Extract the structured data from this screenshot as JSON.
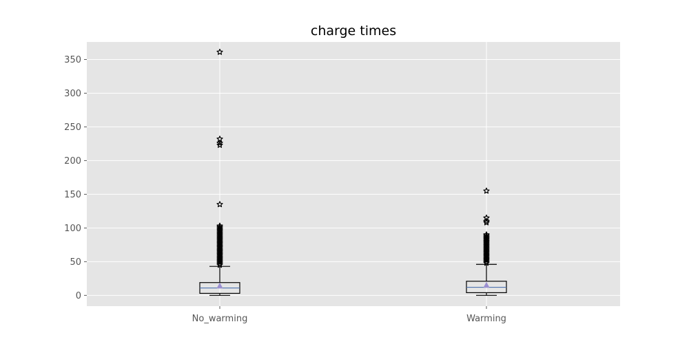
{
  "chart_data": {
    "type": "box",
    "title": "charge times",
    "xlabel": "",
    "ylabel": "",
    "ylim": [
      -16,
      376
    ],
    "yticks": [
      0,
      50,
      100,
      150,
      200,
      250,
      300,
      350
    ],
    "grid": true,
    "categories": [
      "No_warming",
      "Warming"
    ],
    "series": [
      {
        "whisker_low": 0,
        "q1": 3,
        "median": 11,
        "q3": 19,
        "whisker_high": 43,
        "mean": 14,
        "outliers": [
          45,
          47,
          49,
          51,
          53,
          55,
          57,
          59,
          61,
          63,
          65,
          67,
          69,
          71,
          73,
          75,
          77,
          79,
          81,
          83,
          85,
          87,
          89,
          91,
          93,
          95,
          97,
          99,
          101,
          103,
          135,
          223,
          226,
          232,
          361
        ]
      },
      {
        "whisker_low": 0,
        "q1": 4,
        "median": 12,
        "q3": 21,
        "whisker_high": 46,
        "mean": 15,
        "outliers": [
          48,
          50,
          52,
          54,
          56,
          58,
          60,
          62,
          64,
          66,
          68,
          70,
          72,
          74,
          76,
          78,
          80,
          82,
          84,
          86,
          88,
          90,
          108,
          110,
          115,
          155
        ]
      }
    ],
    "colors": {
      "plot_background": "#E5E5E5",
      "grid": "#FFFFFF",
      "box": "#000000",
      "median": "#4C72B0",
      "mean_marker": "#9B8FD0",
      "outlier": "#000000"
    }
  }
}
